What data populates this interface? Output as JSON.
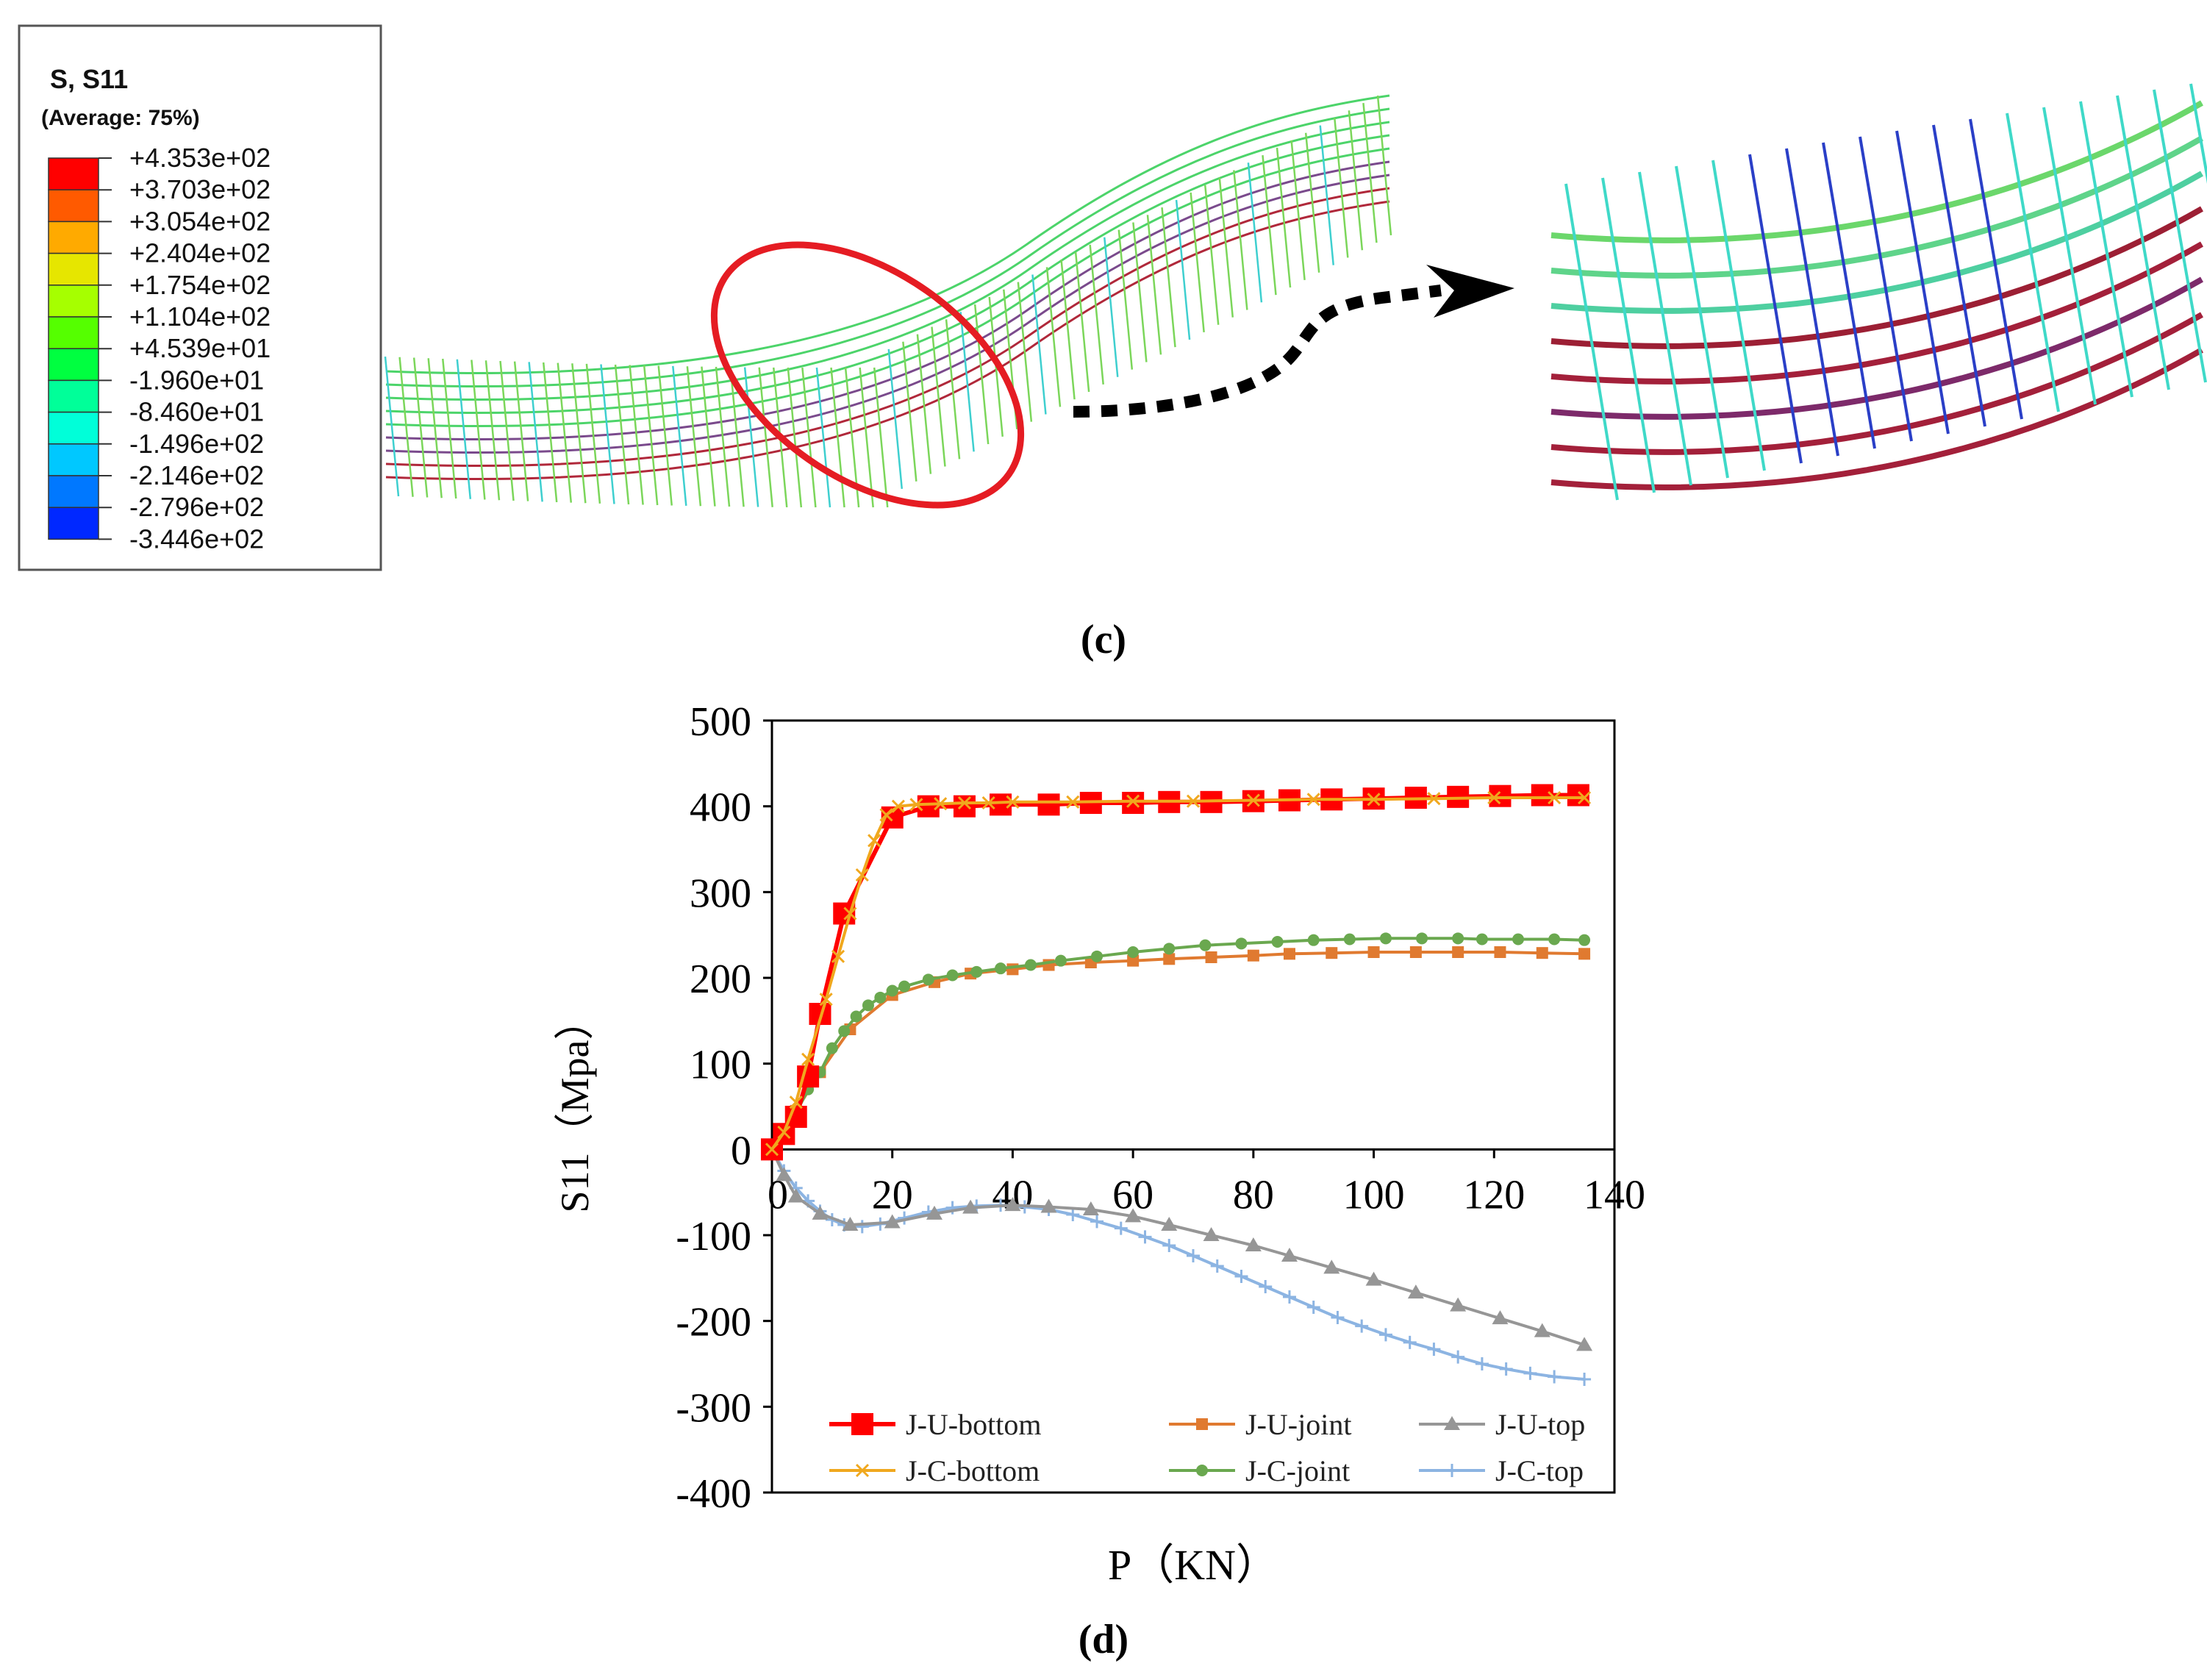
{
  "contour_legend": {
    "title": "S, S11",
    "subtitle": "(Average: 75%)",
    "values": [
      "+4.353e+02",
      "+3.703e+02",
      "+3.054e+02",
      "+2.404e+02",
      "+1.754e+02",
      "+1.104e+02",
      "+4.539e+01",
      "-1.960e+01",
      "-8.460e+01",
      "-1.496e+02",
      "-2.146e+02",
      "-2.796e+02",
      "-3.446e+02"
    ],
    "band_colors": [
      "#ff0000",
      "#ff5a00",
      "#ffaa00",
      "#e6e600",
      "#a6ff00",
      "#55ff00",
      "#00ff40",
      "#00ff99",
      "#00ffd9",
      "#00c8ff",
      "#0078ff",
      "#0028ff"
    ]
  },
  "captions": {
    "top": "(c)",
    "bottom": "(d)"
  },
  "chart_data": {
    "type": "line",
    "title": "",
    "xlabel": "P（KN）",
    "ylabel": "S11（Mpa）",
    "xlim": [
      0,
      140
    ],
    "ylim": [
      -400,
      500
    ],
    "xticks": [
      "0",
      "20",
      "40",
      "60",
      "80",
      "100",
      "120",
      "140"
    ],
    "yticks": [
      "500",
      "400",
      "300",
      "200",
      "100",
      "0",
      "-100",
      "-200",
      "-300",
      "-400"
    ],
    "legend_position": "bottom-right",
    "series": [
      {
        "name": "J-U-bottom",
        "color": "#ff0000",
        "marker": "square-large",
        "x": [
          0,
          2,
          4,
          6,
          8,
          12,
          20,
          26,
          32,
          38,
          46,
          53,
          60,
          66,
          73,
          80,
          86,
          93,
          100,
          107,
          114,
          121,
          128,
          134
        ],
        "y": [
          0,
          18,
          38,
          85,
          158,
          275,
          387,
          400,
          400,
          402,
          402,
          404,
          404,
          405,
          405,
          406,
          407,
          408,
          409,
          410,
          411,
          412,
          413,
          413
        ]
      },
      {
        "name": "J-U-joint",
        "color": "#e07a30",
        "marker": "square-small",
        "x": [
          0,
          2,
          4,
          8,
          13,
          20,
          27,
          33,
          40,
          46,
          53,
          60,
          66,
          73,
          80,
          86,
          93,
          100,
          107,
          114,
          121,
          128,
          135
        ],
        "y": [
          0,
          20,
          45,
          90,
          140,
          180,
          195,
          205,
          210,
          215,
          218,
          220,
          222,
          224,
          226,
          228,
          229,
          230,
          230,
          230,
          230,
          229,
          228
        ]
      },
      {
        "name": "J-U-top",
        "color": "#969696",
        "marker": "triangle",
        "x": [
          0,
          2,
          4,
          8,
          13,
          20,
          27,
          33,
          40,
          46,
          53,
          60,
          66,
          73,
          80,
          86,
          93,
          100,
          107,
          114,
          121,
          128,
          135
        ],
        "y": [
          0,
          -30,
          -55,
          -75,
          -88,
          -85,
          -75,
          -68,
          -65,
          -67,
          -70,
          -78,
          -88,
          -100,
          -112,
          -124,
          -138,
          -152,
          -167,
          -182,
          -197,
          -212,
          -228
        ]
      },
      {
        "name": "J-C-bottom",
        "color": "#f0a81e",
        "marker": "x",
        "x": [
          0,
          2,
          4,
          6,
          9,
          11,
          13,
          15,
          17,
          19,
          21,
          24,
          28,
          32,
          36,
          40,
          50,
          60,
          70,
          80,
          90,
          100,
          110,
          120,
          130,
          135
        ],
        "y": [
          0,
          20,
          55,
          105,
          175,
          225,
          275,
          320,
          360,
          390,
          400,
          402,
          403,
          404,
          404,
          405,
          405,
          406,
          406,
          407,
          408,
          408,
          409,
          410,
          410,
          410
        ]
      },
      {
        "name": "J-C-joint",
        "color": "#6aa84f",
        "marker": "circle",
        "x": [
          0,
          2,
          4,
          6,
          8,
          10,
          12,
          14,
          16,
          18,
          20,
          22,
          26,
          30,
          34,
          38,
          43,
          48,
          54,
          60,
          66,
          72,
          78,
          84,
          90,
          96,
          102,
          108,
          114,
          118,
          124,
          130,
          135
        ],
        "y": [
          0,
          15,
          42,
          70,
          90,
          118,
          138,
          155,
          168,
          177,
          185,
          190,
          198,
          203,
          207,
          211,
          215,
          220,
          225,
          230,
          234,
          238,
          240,
          242,
          244,
          245,
          246,
          246,
          246,
          245,
          245,
          245,
          244
        ]
      },
      {
        "name": "J-C-top",
        "color": "#8cb4e2",
        "marker": "plus",
        "x": [
          0,
          2,
          4,
          6,
          8,
          10,
          12,
          15,
          18,
          22,
          26,
          30,
          34,
          38,
          42,
          46,
          50,
          54,
          58,
          62,
          66,
          70,
          74,
          78,
          82,
          86,
          90,
          94,
          98,
          102,
          106,
          110,
          114,
          118,
          122,
          126,
          130,
          135
        ],
        "y": [
          0,
          -25,
          -45,
          -60,
          -72,
          -82,
          -88,
          -90,
          -87,
          -80,
          -73,
          -68,
          -66,
          -65,
          -67,
          -70,
          -76,
          -84,
          -92,
          -102,
          -112,
          -124,
          -136,
          -148,
          -160,
          -172,
          -184,
          -196,
          -206,
          -216,
          -225,
          -233,
          -242,
          -250,
          -256,
          -261,
          -265,
          -268
        ]
      }
    ]
  }
}
